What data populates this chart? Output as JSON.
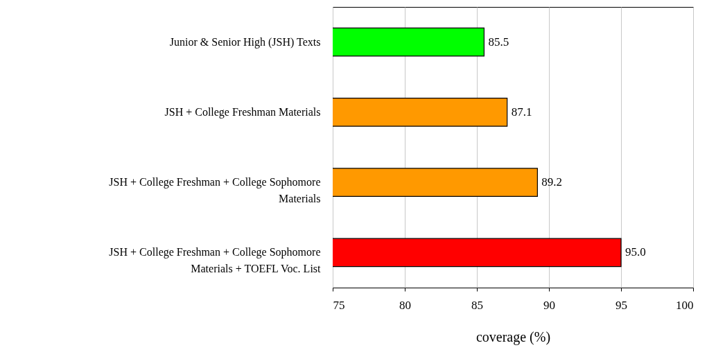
{
  "chart_data": {
    "type": "bar",
    "orientation": "horizontal",
    "xlabel": "coverage (%)",
    "categories": [
      "Junior & Senior High (JSH) Texts",
      "JSH + College Freshman Materials",
      "JSH + College Freshman + College Sophomore Materials",
      "JSH + College Freshman + College Sophomore Materials + TOEFL Voc. List"
    ],
    "values": [
      85.5,
      87.1,
      89.2,
      95.0
    ],
    "value_labels": [
      "85.5",
      "87.1",
      "89.2",
      "95.0"
    ],
    "colors": [
      "#00ff00",
      "#ff9900",
      "#ff9900",
      "#ff0000"
    ],
    "xlim": [
      75,
      100
    ],
    "xticks": [
      75,
      80,
      85,
      90,
      95,
      100
    ],
    "grid": "x"
  }
}
